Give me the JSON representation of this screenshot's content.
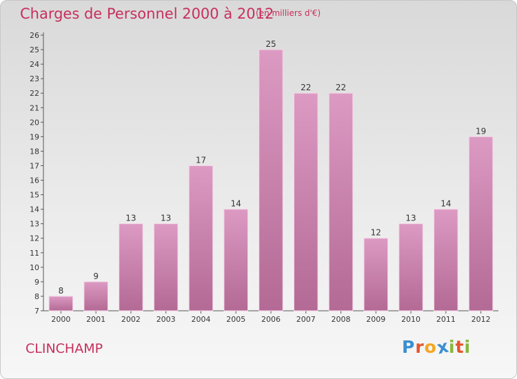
{
  "chart_data": {
    "type": "bar",
    "title": "Charges de Personnel 2000 à 2012",
    "subtitle": "(en milliers d'€)",
    "categories": [
      "2000",
      "2001",
      "2002",
      "2003",
      "2004",
      "2005",
      "2006",
      "2007",
      "2008",
      "2009",
      "2010",
      "2011",
      "2012"
    ],
    "values": [
      8,
      9,
      13,
      13,
      17,
      14,
      25,
      22,
      22,
      12,
      13,
      14,
      19
    ],
    "ylim": [
      7,
      26
    ],
    "yticks": [
      7,
      8,
      9,
      10,
      11,
      12,
      13,
      14,
      15,
      16,
      17,
      18,
      19,
      20,
      21,
      22,
      23,
      24,
      25,
      26
    ],
    "grid": false,
    "bar_color": "#dc9ac3",
    "bar_color_dark": "#b36a95"
  },
  "location": "CLINCHAMP",
  "logo": {
    "text": "Proxiti",
    "letters": [
      {
        "ch": "P",
        "color": "#3a8fd0"
      },
      {
        "ch": "r",
        "color": "#e2562d"
      },
      {
        "ch": "o",
        "color": "#f5a623"
      },
      {
        "ch": "x",
        "color": "#3a8fd0"
      },
      {
        "ch": "i",
        "color": "#86b83a"
      },
      {
        "ch": "t",
        "color": "#e2562d"
      },
      {
        "ch": "i",
        "color": "#86b83a"
      }
    ]
  }
}
